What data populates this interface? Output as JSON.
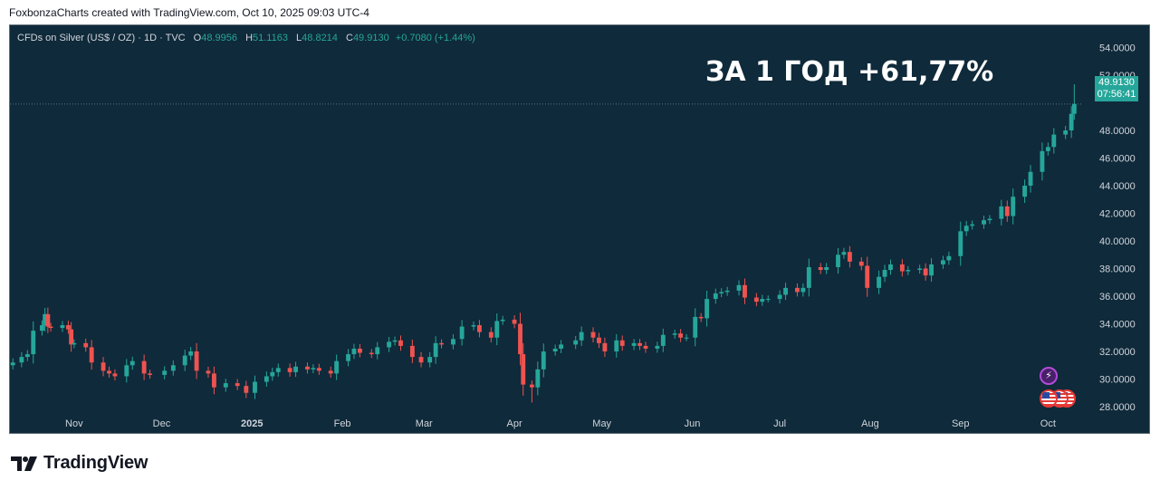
{
  "header": {
    "credit": "FoxbonzaCharts created with TradingView.com, Oct 10, 2025 09:03 UTC-4"
  },
  "legend": {
    "symbol": "CFDs on Silver (US$ / OZ) · 1D · TVC",
    "open_label": "O",
    "open": "48.9956",
    "high_label": "H",
    "high": "51.1163",
    "low_label": "L",
    "low": "48.8214",
    "close_label": "C",
    "close": "49.9130",
    "change": "+0.7080 (+1.44%)"
  },
  "annotation": "ЗА 1 ГОД +61,77%",
  "price_tag": {
    "price": "49.9130",
    "countdown": "07:56:41"
  },
  "footer": {
    "brand": "TradingView"
  },
  "colors": {
    "background": "#0f2a3a",
    "up": "#26a69a",
    "down": "#ef5350",
    "axis_text": "#d1d4dc"
  },
  "icons": [
    "flash-icon",
    "us-flag-icon"
  ],
  "chart_data": {
    "type": "candlestick",
    "title": "",
    "xlabel": "",
    "ylabel": "",
    "ylim": [
      26.0,
      54.0
    ],
    "y_ticks": [
      "28.0000",
      "30.0000",
      "32.0000",
      "34.0000",
      "36.0000",
      "38.0000",
      "40.0000",
      "42.0000",
      "44.0000",
      "46.0000",
      "48.0000",
      "52.0000",
      "54.0000"
    ],
    "x_ticks": [
      "Nov",
      "Dec",
      "2025",
      "Feb",
      "Mar",
      "Apr",
      "May",
      "Jun",
      "Jul",
      "Aug",
      "Sep",
      "Oct"
    ],
    "x_tick_dates": [
      "2024-11-01",
      "2024-12-01",
      "2025-01-01",
      "2025-02-01",
      "2025-03-01",
      "2025-04-01",
      "2025-05-01",
      "2025-06-01",
      "2025-07-01",
      "2025-08-01",
      "2025-09-01",
      "2025-10-01"
    ],
    "grid": false,
    "last_price": 49.913,
    "close_series": [
      [
        "2024-10-11",
        31.2
      ],
      [
        "2024-10-14",
        31.6
      ],
      [
        "2024-10-16",
        31.8
      ],
      [
        "2024-10-18",
        33.5
      ],
      [
        "2024-10-21",
        33.9
      ],
      [
        "2024-10-22",
        34.7
      ],
      [
        "2024-10-23",
        33.8
      ],
      [
        "2024-10-24",
        33.7
      ],
      [
        "2024-10-28",
        33.9
      ],
      [
        "2024-10-30",
        33.6
      ],
      [
        "2024-10-31",
        32.5
      ],
      [
        "2024-11-01",
        32.6
      ],
      [
        "2024-11-05",
        32.3
      ],
      [
        "2024-11-07",
        31.2
      ],
      [
        "2024-11-11",
        30.6
      ],
      [
        "2024-11-13",
        30.4
      ],
      [
        "2024-11-15",
        30.2
      ],
      [
        "2024-11-19",
        31.0
      ],
      [
        "2024-11-21",
        31.3
      ],
      [
        "2024-11-25",
        30.4
      ],
      [
        "2024-11-27",
        30.3
      ],
      [
        "2024-12-02",
        30.6
      ],
      [
        "2024-12-05",
        31.0
      ],
      [
        "2024-12-09",
        31.7
      ],
      [
        "2024-12-11",
        32.0
      ],
      [
        "2024-12-13",
        30.6
      ],
      [
        "2024-12-17",
        30.4
      ],
      [
        "2024-12-19",
        29.4
      ],
      [
        "2024-12-23",
        29.7
      ],
      [
        "2024-12-27",
        29.5
      ],
      [
        "2024-12-30",
        29.0
      ],
      [
        "2025-01-02",
        29.8
      ],
      [
        "2025-01-06",
        30.2
      ],
      [
        "2025-01-08",
        30.5
      ],
      [
        "2025-01-10",
        30.8
      ],
      [
        "2025-01-14",
        30.5
      ],
      [
        "2025-01-16",
        30.9
      ],
      [
        "2025-01-20",
        30.7
      ],
      [
        "2025-01-22",
        30.8
      ],
      [
        "2025-01-24",
        30.6
      ],
      [
        "2025-01-28",
        30.4
      ],
      [
        "2025-01-30",
        31.3
      ],
      [
        "2025-02-03",
        31.8
      ],
      [
        "2025-02-05",
        32.2
      ],
      [
        "2025-02-07",
        31.9
      ],
      [
        "2025-02-11",
        31.8
      ],
      [
        "2025-02-13",
        32.3
      ],
      [
        "2025-02-17",
        32.7
      ],
      [
        "2025-02-19",
        32.8
      ],
      [
        "2025-02-21",
        32.4
      ],
      [
        "2025-02-25",
        31.6
      ],
      [
        "2025-02-28",
        31.2
      ],
      [
        "2025-03-03",
        31.6
      ],
      [
        "2025-03-05",
        32.6
      ],
      [
        "2025-03-07",
        32.5
      ],
      [
        "2025-03-11",
        32.9
      ],
      [
        "2025-03-14",
        33.8
      ],
      [
        "2025-03-18",
        33.9
      ],
      [
        "2025-03-20",
        33.4
      ],
      [
        "2025-03-24",
        33.0
      ],
      [
        "2025-03-26",
        34.2
      ],
      [
        "2025-03-28",
        34.3
      ],
      [
        "2025-04-01",
        34.0
      ],
      [
        "2025-04-03",
        31.8
      ],
      [
        "2025-04-04",
        29.6
      ],
      [
        "2025-04-07",
        29.4
      ],
      [
        "2025-04-09",
        30.7
      ],
      [
        "2025-04-11",
        32.0
      ],
      [
        "2025-04-15",
        32.2
      ],
      [
        "2025-04-17",
        32.5
      ],
      [
        "2025-04-22",
        32.8
      ],
      [
        "2025-04-24",
        33.4
      ],
      [
        "2025-04-28",
        33.0
      ],
      [
        "2025-04-30",
        32.6
      ],
      [
        "2025-05-02",
        32.0
      ],
      [
        "2025-05-06",
        32.8
      ],
      [
        "2025-05-08",
        32.4
      ],
      [
        "2025-05-12",
        32.6
      ],
      [
        "2025-05-14",
        32.4
      ],
      [
        "2025-05-16",
        32.2
      ],
      [
        "2025-05-20",
        32.4
      ],
      [
        "2025-05-22",
        33.2
      ],
      [
        "2025-05-26",
        33.3
      ],
      [
        "2025-05-28",
        33.0
      ],
      [
        "2025-05-30",
        33.0
      ],
      [
        "2025-06-02",
        34.5
      ],
      [
        "2025-06-04",
        34.4
      ],
      [
        "2025-06-06",
        35.8
      ],
      [
        "2025-06-09",
        36.2
      ],
      [
        "2025-06-11",
        36.3
      ],
      [
        "2025-06-13",
        36.4
      ],
      [
        "2025-06-17",
        36.8
      ],
      [
        "2025-06-19",
        35.9
      ],
      [
        "2025-06-23",
        35.6
      ],
      [
        "2025-06-25",
        35.8
      ],
      [
        "2025-06-27",
        35.8
      ],
      [
        "2025-07-01",
        36.1
      ],
      [
        "2025-07-03",
        36.6
      ],
      [
        "2025-07-07",
        36.3
      ],
      [
        "2025-07-09",
        36.6
      ],
      [
        "2025-07-11",
        38.1
      ],
      [
        "2025-07-15",
        37.9
      ],
      [
        "2025-07-17",
        38.1
      ],
      [
        "2025-07-21",
        39.0
      ],
      [
        "2025-07-23",
        39.2
      ],
      [
        "2025-07-25",
        38.5
      ],
      [
        "2025-07-29",
        38.2
      ],
      [
        "2025-07-31",
        36.6
      ],
      [
        "2025-08-04",
        37.4
      ],
      [
        "2025-08-06",
        37.9
      ],
      [
        "2025-08-08",
        38.3
      ],
      [
        "2025-08-12",
        37.8
      ],
      [
        "2025-08-14",
        37.9
      ],
      [
        "2025-08-18",
        38.0
      ],
      [
        "2025-08-20",
        37.5
      ],
      [
        "2025-08-22",
        38.3
      ],
      [
        "2025-08-26",
        38.6
      ],
      [
        "2025-08-28",
        38.9
      ],
      [
        "2025-09-01",
        40.7
      ],
      [
        "2025-09-03",
        41.1
      ],
      [
        "2025-09-05",
        41.2
      ],
      [
        "2025-09-09",
        41.5
      ],
      [
        "2025-09-11",
        41.6
      ],
      [
        "2025-09-15",
        42.5
      ],
      [
        "2025-09-17",
        41.8
      ],
      [
        "2025-09-19",
        43.2
      ],
      [
        "2025-09-23",
        44.0
      ],
      [
        "2025-09-25",
        45.0
      ],
      [
        "2025-09-29",
        46.5
      ],
      [
        "2025-10-01",
        46.8
      ],
      [
        "2025-10-03",
        47.7
      ],
      [
        "2025-10-07",
        48.0
      ],
      [
        "2025-10-09",
        49.2
      ],
      [
        "2025-10-10",
        49.913
      ]
    ]
  }
}
